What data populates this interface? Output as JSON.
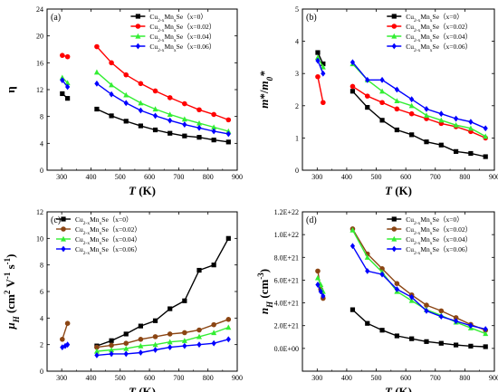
{
  "chart_data": [
    {
      "type": "line",
      "panel_label": "(a)",
      "ylabel": "η",
      "xlabel": "T (K)",
      "xlim": [
        250,
        900
      ],
      "ylim": [
        0,
        24
      ],
      "xticks": [
        300,
        400,
        500,
        600,
        700,
        800,
        900
      ],
      "yticks": [
        0,
        4,
        8,
        12,
        16,
        20,
        24
      ],
      "legend_position": "top-right",
      "series": [
        {
          "name": "Cu2-xMnxSe（x=0）",
          "color": "#000000",
          "marker": "square",
          "segments": [
            [
              [
                302,
                11.4
              ],
              [
                320,
                10.7
              ]
            ],
            [
              [
                420,
                9.1
              ],
              [
                470,
                8.1
              ],
              [
                520,
                7.3
              ],
              [
                570,
                6.6
              ],
              [
                620,
                6.0
              ],
              [
                670,
                5.5
              ],
              [
                720,
                5.1
              ],
              [
                770,
                4.9
              ],
              [
                820,
                4.5
              ],
              [
                870,
                4.2
              ]
            ]
          ]
        },
        {
          "name": "Cu2-xMnxSe（x=0.02）",
          "color": "#ff0000",
          "marker": "circle",
          "segments": [
            [
              [
                302,
                17.1
              ],
              [
                320,
                16.9
              ]
            ],
            [
              [
                420,
                18.4
              ],
              [
                470,
                16.0
              ],
              [
                520,
                14.2
              ],
              [
                570,
                12.9
              ],
              [
                620,
                11.8
              ],
              [
                670,
                10.8
              ],
              [
                720,
                9.9
              ],
              [
                770,
                9.0
              ],
              [
                820,
                8.3
              ],
              [
                870,
                7.5
              ]
            ]
          ]
        },
        {
          "name": "Cu2-xMnxSe（x=0.04）",
          "color": "#33ee33",
          "marker": "triangle",
          "segments": [
            [
              [
                302,
                13.8
              ],
              [
                320,
                13.0
              ]
            ],
            [
              [
                420,
                14.6
              ],
              [
                470,
                12.7
              ],
              [
                520,
                11.2
              ],
              [
                570,
                10.0
              ],
              [
                620,
                9.1
              ],
              [
                670,
                8.3
              ],
              [
                720,
                7.6
              ],
              [
                770,
                7.0
              ],
              [
                820,
                6.4
              ],
              [
                870,
                5.8
              ]
            ]
          ]
        },
        {
          "name": "Cu2-xMnxSe（x=0.06）",
          "color": "#0000ff",
          "marker": "diamond",
          "segments": [
            [
              [
                302,
                13.4
              ],
              [
                320,
                12.4
              ]
            ],
            [
              [
                420,
                12.9
              ],
              [
                470,
                11.3
              ],
              [
                520,
                10.0
              ],
              [
                570,
                8.9
              ],
              [
                620,
                8.1
              ],
              [
                670,
                7.4
              ],
              [
                720,
                6.8
              ],
              [
                770,
                6.3
              ],
              [
                820,
                5.8
              ],
              [
                870,
                5.4
              ]
            ]
          ]
        }
      ]
    },
    {
      "type": "line",
      "panel_label": "(b)",
      "ylabel": "m*/m0*",
      "xlabel": "T (K)",
      "xlim": [
        250,
        900
      ],
      "ylim": [
        0,
        5
      ],
      "xticks": [
        300,
        400,
        500,
        600,
        700,
        800,
        900
      ],
      "yticks": [
        0,
        1,
        2,
        3,
        4,
        5
      ],
      "legend_position": "top-right",
      "series": [
        {
          "name": "Cu2-xMnxSe（x=0）",
          "color": "#000000",
          "marker": "square",
          "segments": [
            [
              [
                302,
                3.65
              ],
              [
                320,
                3.3
              ]
            ],
            [
              [
                420,
                2.45
              ],
              [
                470,
                1.95
              ],
              [
                520,
                1.55
              ],
              [
                570,
                1.25
              ],
              [
                620,
                1.1
              ],
              [
                670,
                0.88
              ],
              [
                720,
                0.78
              ],
              [
                770,
                0.58
              ],
              [
                820,
                0.52
              ],
              [
                870,
                0.42
              ]
            ]
          ]
        },
        {
          "name": "Cu2-xMnxSe（x=0.02）",
          "color": "#ff0000",
          "marker": "circle",
          "segments": [
            [
              [
                302,
                2.9
              ],
              [
                320,
                2.1
              ]
            ],
            [
              [
                420,
                2.6
              ],
              [
                470,
                2.3
              ],
              [
                520,
                2.1
              ],
              [
                570,
                1.9
              ],
              [
                620,
                1.75
              ],
              [
                670,
                1.6
              ],
              [
                720,
                1.45
              ],
              [
                770,
                1.35
              ],
              [
                820,
                1.2
              ],
              [
                870,
                1.0
              ]
            ]
          ]
        },
        {
          "name": "Cu2-xMnxSe（x=0.04）",
          "color": "#33ee33",
          "marker": "triangle",
          "segments": [
            [
              [
                302,
                3.5
              ],
              [
                320,
                3.2
              ]
            ],
            [
              [
                420,
                3.3
              ],
              [
                470,
                2.8
              ],
              [
                520,
                2.45
              ],
              [
                570,
                2.15
              ],
              [
                620,
                2.0
              ],
              [
                670,
                1.7
              ],
              [
                720,
                1.55
              ],
              [
                770,
                1.4
              ],
              [
                820,
                1.3
              ],
              [
                870,
                1.05
              ]
            ]
          ]
        },
        {
          "name": "Cu2-xMnxSe（x=0.06）",
          "color": "#0000ff",
          "marker": "diamond",
          "segments": [
            [
              [
                302,
                3.4
              ],
              [
                320,
                3.0
              ]
            ],
            [
              [
                420,
                3.35
              ],
              [
                470,
                2.8
              ],
              [
                520,
                2.8
              ],
              [
                570,
                2.5
              ],
              [
                620,
                2.2
              ],
              [
                670,
                1.9
              ],
              [
                720,
                1.75
              ],
              [
                770,
                1.6
              ],
              [
                820,
                1.5
              ],
              [
                870,
                1.3
              ]
            ]
          ]
        }
      ]
    },
    {
      "type": "line",
      "panel_label": "(c)",
      "ylabel": "μH (cm2 V-1 s-1)",
      "xlabel": "T (K)",
      "xlim": [
        250,
        900
      ],
      "ylim": [
        0,
        12
      ],
      "xticks": [
        300,
        400,
        500,
        600,
        700,
        800,
        900
      ],
      "yticks": [
        0,
        2,
        4,
        6,
        8,
        10,
        12
      ],
      "legend_position": "top-left",
      "series": [
        {
          "name": "Cu2-xMnxSe（x=0）",
          "color": "#000000",
          "marker": "square",
          "segments": [
            [
              [
                420,
                1.9
              ],
              [
                470,
                2.3
              ],
              [
                520,
                2.8
              ],
              [
                570,
                3.4
              ],
              [
                620,
                3.8
              ],
              [
                670,
                4.7
              ],
              [
                720,
                5.3
              ],
              [
                770,
                7.6
              ],
              [
                820,
                8.0
              ],
              [
                870,
                10.0
              ]
            ]
          ]
        },
        {
          "name": "Cu2-xMnxSe（x=0.02）",
          "color": "#8b4513",
          "marker": "circle",
          "segments": [
            [
              [
                302,
                2.4
              ],
              [
                320,
                3.6
              ]
            ],
            [
              [
                420,
                1.8
              ],
              [
                470,
                1.95
              ],
              [
                520,
                2.1
              ],
              [
                570,
                2.4
              ],
              [
                620,
                2.6
              ],
              [
                670,
                2.8
              ],
              [
                720,
                2.9
              ],
              [
                770,
                3.1
              ],
              [
                820,
                3.5
              ],
              [
                870,
                3.9
              ]
            ]
          ]
        },
        {
          "name": "Cu2-xMnxSe（x=0.04）",
          "color": "#33ee33",
          "marker": "triangle",
          "segments": [
            [
              [
                420,
                1.5
              ],
              [
                470,
                1.6
              ],
              [
                520,
                1.7
              ],
              [
                570,
                1.9
              ],
              [
                620,
                2.0
              ],
              [
                670,
                2.2
              ],
              [
                720,
                2.3
              ],
              [
                770,
                2.6
              ],
              [
                820,
                2.9
              ],
              [
                870,
                3.3
              ]
            ]
          ]
        },
        {
          "name": "Cu2-xMnxSe（x=0.06）",
          "color": "#0000ff",
          "marker": "diamond",
          "segments": [
            [
              [
                302,
                1.8
              ],
              [
                312,
                1.9
              ],
              [
                320,
                2.0
              ]
            ],
            [
              [
                420,
                1.2
              ],
              [
                470,
                1.3
              ],
              [
                520,
                1.3
              ],
              [
                570,
                1.4
              ],
              [
                620,
                1.6
              ],
              [
                670,
                1.8
              ],
              [
                720,
                1.9
              ],
              [
                770,
                2.0
              ],
              [
                820,
                2.1
              ],
              [
                870,
                2.4
              ]
            ]
          ]
        }
      ]
    },
    {
      "type": "line",
      "panel_label": "(d)",
      "ylabel": "nH (cm-3)",
      "xlabel": "T (K)",
      "xlim": [
        250,
        900
      ],
      "ylim": [
        -2e+21,
        1.2e+22
      ],
      "xticks": [
        300,
        400,
        500,
        600,
        700,
        800,
        900
      ],
      "yticks": [
        0,
        2e+21,
        4e+21,
        6e+21,
        8e+21,
        1e+22,
        1.2e+22
      ],
      "ytick_labels": [
        "0.0E+00",
        "2.0E+21",
        "4.0E+21",
        "6.0E+21",
        "8.0E+21",
        "1.0E+22",
        "1.2E+22"
      ],
      "legend_position": "top-right",
      "series": [
        {
          "name": "Cu2-xMnxSe（x=0）",
          "color": "#000000",
          "marker": "square",
          "segments": [
            [
              [
                420,
                3.4e+21
              ],
              [
                470,
                2.2e+21
              ],
              [
                520,
                1.6e+21
              ],
              [
                570,
                1.1e+21
              ],
              [
                620,
                8.5e+20
              ],
              [
                670,
                6e+20
              ],
              [
                720,
                4.5e+20
              ],
              [
                770,
                3e+20
              ],
              [
                820,
                2e+20
              ],
              [
                870,
                1.5e+20
              ]
            ]
          ]
        },
        {
          "name": "Cu2-xMnxSe（x=0.02）",
          "color": "#8b4513",
          "marker": "circle",
          "segments": [
            [
              [
                302,
                6.8e+21
              ],
              [
                312,
                5.2e+21
              ],
              [
                320,
                4.4e+21
              ]
            ],
            [
              [
                420,
                1.05e+22
              ],
              [
                470,
                8.3e+21
              ],
              [
                520,
                7e+21
              ],
              [
                570,
                5.7e+21
              ],
              [
                620,
                4.7e+21
              ],
              [
                670,
                3.8e+21
              ],
              [
                720,
                3.3e+21
              ],
              [
                770,
                2.7e+21
              ],
              [
                820,
                2.1e+21
              ],
              [
                870,
                1.6e+21
              ]
            ]
          ]
        },
        {
          "name": "Cu2-xMnxSe（x=0.04）",
          "color": "#33ee33",
          "marker": "triangle",
          "segments": [
            [
              [
                302,
                6.2e+21
              ],
              [
                312,
                5.6e+21
              ],
              [
                320,
                5e+21
              ]
            ],
            [
              [
                420,
                1.04e+22
              ],
              [
                470,
                8e+21
              ],
              [
                520,
                6.7e+21
              ],
              [
                570,
                5e+21
              ],
              [
                620,
                4.2e+21
              ],
              [
                670,
                3.4e+21
              ],
              [
                720,
                2.9e+21
              ],
              [
                770,
                2.3e+21
              ],
              [
                820,
                1.8e+21
              ],
              [
                870,
                1.3e+21
              ]
            ]
          ]
        },
        {
          "name": "Cu2-xMnxSe（x=0.06）",
          "color": "#0000ff",
          "marker": "diamond",
          "segments": [
            [
              [
                302,
                5.6e+21
              ],
              [
                312,
                5e+21
              ],
              [
                320,
                4.6e+21
              ]
            ],
            [
              [
                420,
                9e+21
              ],
              [
                470,
                6.8e+21
              ],
              [
                520,
                6.5e+21
              ],
              [
                570,
                5.2e+21
              ],
              [
                620,
                4.5e+21
              ],
              [
                670,
                3.3e+21
              ],
              [
                720,
                2.8e+21
              ],
              [
                770,
                2.4e+21
              ],
              [
                820,
                2e+21
              ],
              [
                870,
                1.7e+21
              ]
            ]
          ]
        }
      ]
    }
  ]
}
